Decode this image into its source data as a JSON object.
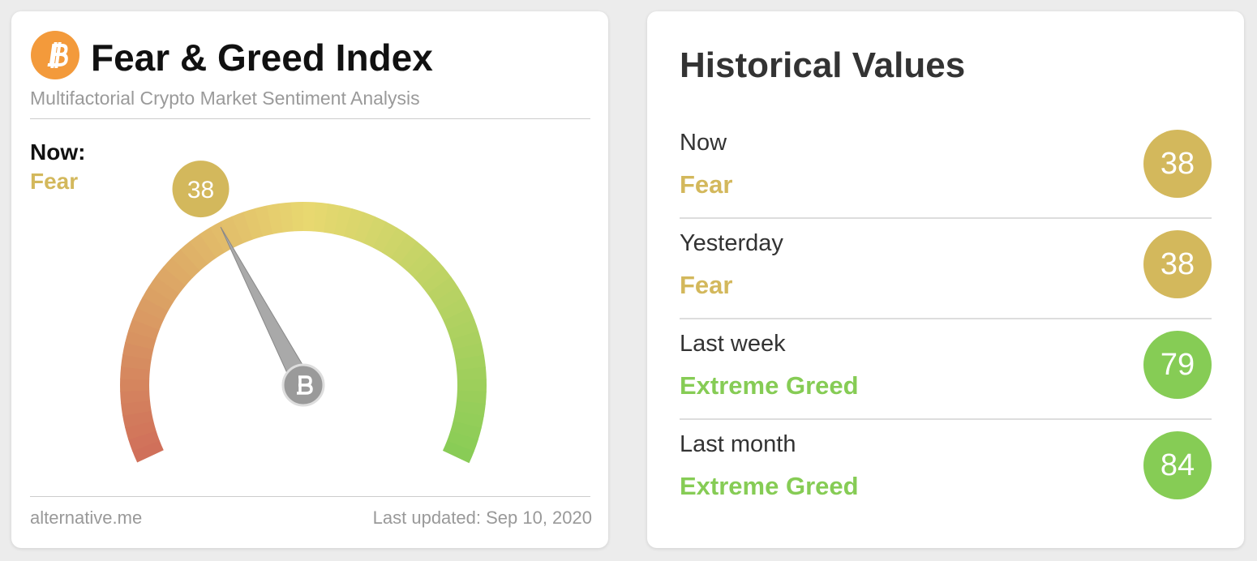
{
  "gauge_card": {
    "title": "Fear & Greed Index",
    "subtitle": "Multifactorial Crypto Market Sentiment Analysis",
    "now_label": "Now:",
    "now_class": "Fear",
    "now_color": "#d3b85c",
    "value": 38,
    "gauge_range": [
      0,
      100
    ],
    "source": "alternative.me",
    "updated": "Last updated: Sep 10, 2020"
  },
  "history": {
    "title": "Historical Values",
    "rows": [
      {
        "period": "Now",
        "class": "Fear",
        "value": 38,
        "color": "#d3b85c"
      },
      {
        "period": "Yesterday",
        "class": "Fear",
        "value": 38,
        "color": "#d3b85c"
      },
      {
        "period": "Last week",
        "class": "Extreme Greed",
        "value": 79,
        "color": "#86cc55"
      },
      {
        "period": "Last month",
        "class": "Extreme Greed",
        "value": 84,
        "color": "#86cc55"
      }
    ]
  }
}
